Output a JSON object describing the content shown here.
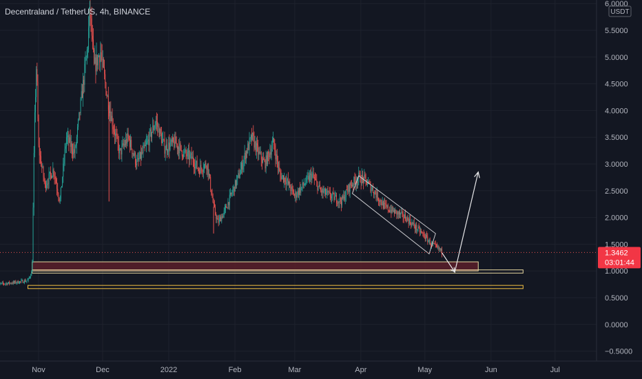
{
  "chart_data": {
    "type": "candlestick",
    "title": "Decentraland / TetherUS, 4h, BINANCE",
    "currency_label": "USDT",
    "x_ticks": [
      "Nov",
      "Dec",
      "2022",
      "Feb",
      "Mar",
      "Apr",
      "May",
      "Jun",
      "Jul"
    ],
    "y_ticks": [
      "6.0000",
      "5.5000",
      "5.0000",
      "4.5000",
      "4.0000",
      "3.5000",
      "3.0000",
      "2.5000",
      "2.0000",
      "1.5000",
      "1.0000",
      "0.5000",
      "0.0000",
      "−0.5000"
    ],
    "ylim": [
      -0.5,
      6.0
    ],
    "last_price": "1.3462",
    "countdown": "03:01:44",
    "price_path": [
      [
        "2021-10-12",
        0.75
      ],
      [
        "2021-10-20",
        0.78
      ],
      [
        "2021-10-27",
        0.82
      ],
      [
        "2021-10-29",
        1.0
      ],
      [
        "2021-10-30",
        3.6
      ],
      [
        "2021-10-31",
        4.9
      ],
      [
        "2021-11-01",
        3.3
      ],
      [
        "2021-11-04",
        2.6
      ],
      [
        "2021-11-08",
        2.9
      ],
      [
        "2021-11-11",
        2.3
      ],
      [
        "2021-11-14",
        3.5
      ],
      [
        "2021-11-18",
        3.2
      ],
      [
        "2021-11-21",
        4.2
      ],
      [
        "2021-11-24",
        5.2
      ],
      [
        "2021-11-25",
        5.9
      ],
      [
        "2021-11-27",
        4.8
      ],
      [
        "2021-11-30",
        5.1
      ],
      [
        "2021-12-03",
        4.3
      ],
      [
        "2021-12-06",
        3.7
      ],
      [
        "2021-12-09",
        3.2
      ],
      [
        "2021-12-13",
        3.5
      ],
      [
        "2021-12-17",
        3.0
      ],
      [
        "2021-12-21",
        3.3
      ],
      [
        "2021-12-26",
        3.8
      ],
      [
        "2021-12-30",
        3.3
      ],
      [
        "2022-01-04",
        3.4
      ],
      [
        "2022-01-08",
        3.2
      ],
      [
        "2022-01-12",
        3.1
      ],
      [
        "2022-01-15",
        2.9
      ],
      [
        "2022-01-19",
        3.0
      ],
      [
        "2022-01-22",
        2.2
      ],
      [
        "2022-01-24",
        1.9
      ],
      [
        "2022-01-27",
        2.1
      ],
      [
        "2022-01-31",
        2.5
      ],
      [
        "2022-02-03",
        2.8
      ],
      [
        "2022-02-06",
        3.2
      ],
      [
        "2022-02-09",
        3.5
      ],
      [
        "2022-02-12",
        3.2
      ],
      [
        "2022-02-15",
        3.0
      ],
      [
        "2022-02-19",
        3.4
      ],
      [
        "2022-02-22",
        2.8
      ],
      [
        "2022-02-25",
        2.7
      ],
      [
        "2022-03-01",
        2.4
      ],
      [
        "2022-03-05",
        2.6
      ],
      [
        "2022-03-09",
        2.8
      ],
      [
        "2022-03-13",
        2.5
      ],
      [
        "2022-03-18",
        2.4
      ],
      [
        "2022-03-23",
        2.3
      ],
      [
        "2022-03-27",
        2.6
      ],
      [
        "2022-03-31",
        2.75
      ],
      [
        "2022-04-03",
        2.7
      ],
      [
        "2022-04-07",
        2.5
      ],
      [
        "2022-04-12",
        2.2
      ],
      [
        "2022-04-17",
        2.1
      ],
      [
        "2022-04-22",
        2.0
      ],
      [
        "2022-04-27",
        1.8
      ],
      [
        "2022-05-01",
        1.65
      ],
      [
        "2022-05-04",
        1.5
      ],
      [
        "2022-05-08",
        1.4
      ],
      [
        "2022-05-09",
        1.35
      ]
    ],
    "spikes": [
      [
        "2021-11-25",
        6.05
      ],
      [
        "2021-12-04",
        2.3
      ],
      [
        "2022-01-22",
        1.7
      ]
    ],
    "zones": [
      {
        "name": "demand-zone-filled",
        "x0": "2021-10-29",
        "x1": "2022-05-26",
        "y0": 1.0,
        "y1": 1.17,
        "fill": "#5a1e29",
        "stroke": "#e8d7a0"
      },
      {
        "name": "support-zone-upper",
        "x0": "2021-10-29",
        "x1": "2022-06-16",
        "y0": 0.96,
        "y1": 1.02,
        "fill": "none",
        "stroke": "#e8d7a0"
      },
      {
        "name": "support-zone-lower",
        "x0": "2021-10-27",
        "x1": "2022-06-16",
        "y0": 0.67,
        "y1": 0.73,
        "fill": "none",
        "stroke": "#f5c242"
      }
    ],
    "channel": [
      [
        "2022-03-31",
        2.78
      ],
      [
        "2022-05-06",
        1.7
      ],
      [
        "2022-05-03",
        1.32
      ],
      [
        "2022-03-28",
        2.45
      ]
    ],
    "projection": [
      [
        "2022-05-09",
        1.34
      ],
      [
        "2022-05-15",
        0.98
      ],
      [
        "2022-05-26",
        2.85
      ]
    ],
    "colors": {
      "up": "#26a69a",
      "down": "#ef5350",
      "grid": "#1e222d",
      "text": "#b2b5be",
      "last_price_bg": "#f23645"
    }
  }
}
